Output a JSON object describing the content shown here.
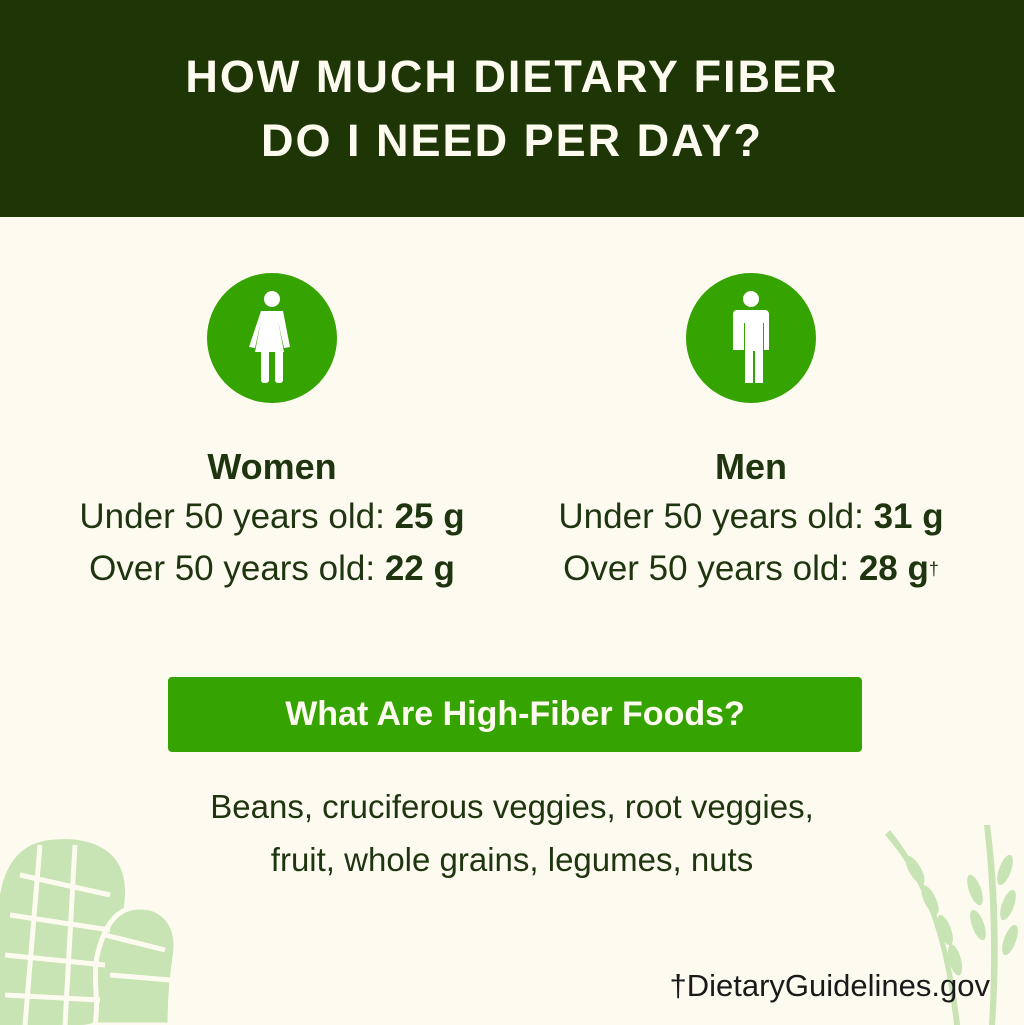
{
  "header": {
    "line1": "HOW MUCH DIETARY FIBER",
    "line2": "DO I NEED PER DAY?"
  },
  "women": {
    "icon": "woman-icon",
    "label": "Women",
    "under_text": "Under 50 years old: ",
    "under_value": "25 g",
    "over_text": "Over 50 years old: ",
    "over_value": "22 g"
  },
  "men": {
    "icon": "man-icon",
    "label": "Men",
    "under_text": "Under 50 years old: ",
    "under_value": "31 g",
    "over_text": "Over 50 years old: ",
    "over_value": "28 g",
    "footnote_mark": "†"
  },
  "banner": {
    "title": "What Are High-Fiber Foods?"
  },
  "foods": {
    "line1": "Beans, cruciferous veggies, root veggies,",
    "line2": "fruit, whole grains, legumes, nuts"
  },
  "source": {
    "text": "†DietaryGuidelines.gov"
  },
  "colors": {
    "header_bg": "#1e3505",
    "accent": "#35a300",
    "background": "#fdfbf0",
    "text": "#1f3510",
    "decor": "#c8e3b4"
  }
}
